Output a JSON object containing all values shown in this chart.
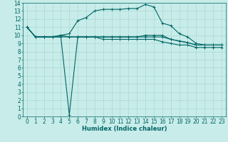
{
  "title": "",
  "xlabel": "Humidex (Indice chaleur)",
  "ylabel": "",
  "bg_color": "#c8ece9",
  "grid_color": "#a8d8d4",
  "line_color": "#006666",
  "xlim": [
    -0.5,
    23.5
  ],
  "ylim": [
    0,
    14
  ],
  "xticks": [
    0,
    1,
    2,
    3,
    4,
    5,
    6,
    7,
    8,
    9,
    10,
    11,
    12,
    13,
    14,
    15,
    16,
    17,
    18,
    19,
    20,
    21,
    22,
    23
  ],
  "yticks": [
    0,
    1,
    2,
    3,
    4,
    5,
    6,
    7,
    8,
    9,
    10,
    11,
    12,
    13,
    14
  ],
  "lines": [
    [
      11.0,
      9.8,
      9.8,
      9.8,
      9.8,
      9.8,
      9.8,
      9.8,
      9.8,
      9.8,
      9.8,
      9.8,
      9.8,
      9.8,
      9.8,
      9.8,
      9.8,
      9.5,
      9.3,
      9.1,
      8.8,
      8.8,
      8.8,
      8.8
    ],
    [
      11.0,
      9.8,
      9.8,
      9.8,
      10.0,
      10.2,
      11.8,
      12.2,
      13.0,
      13.2,
      13.2,
      13.2,
      13.3,
      13.3,
      13.8,
      13.5,
      11.5,
      11.2,
      10.2,
      9.8,
      9.0,
      8.8,
      8.8,
      8.8
    ],
    [
      11.0,
      9.8,
      9.8,
      9.8,
      9.8,
      0.2,
      9.8,
      9.8,
      9.8,
      9.8,
      9.8,
      9.8,
      9.8,
      9.8,
      10.0,
      10.0,
      10.0,
      9.5,
      9.3,
      9.1,
      8.8,
      8.8,
      8.8,
      8.8
    ],
    [
      11.0,
      9.8,
      9.8,
      9.8,
      10.0,
      9.8,
      9.8,
      9.8,
      9.8,
      9.5,
      9.5,
      9.5,
      9.5,
      9.5,
      9.5,
      9.5,
      9.2,
      9.0,
      8.8,
      8.8,
      8.5,
      8.5,
      8.5,
      8.5
    ]
  ],
  "tick_fontsize": 5.5,
  "xlabel_fontsize": 6.0,
  "marker_size": 2.5,
  "linewidth": 0.8
}
